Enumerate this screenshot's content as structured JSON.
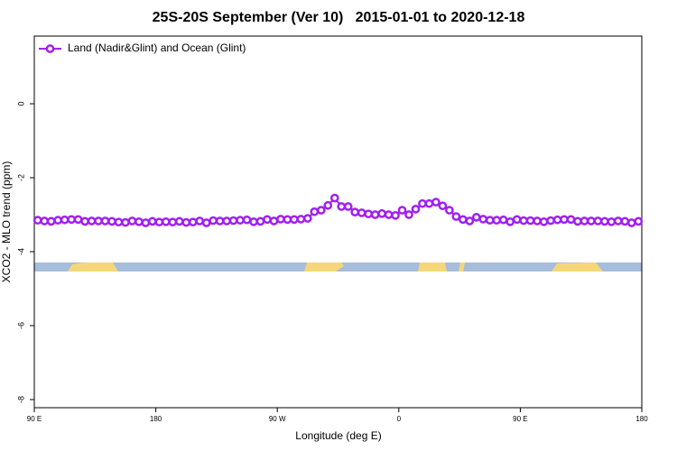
{
  "chart_data": {
    "type": "line",
    "title": "25S-20S September (Ver 10)   2015-01-01 to 2020-12-18",
    "xlabel": "Longitude (deg E)",
    "ylabel": "XCO2 - MLO trend (ppm)",
    "legend": "top-left",
    "x": [
      92.5,
      97.5,
      102.5,
      107.5,
      112.5,
      117.5,
      122.5,
      127.5,
      132.5,
      137.5,
      142.5,
      147.5,
      152.5,
      157.5,
      162.5,
      167.5,
      172.5,
      177.5,
      182.5,
      187.5,
      192.5,
      197.5,
      202.5,
      207.5,
      212.5,
      217.5,
      222.5,
      227.5,
      232.5,
      237.5,
      242.5,
      247.5,
      252.5,
      257.5,
      262.5,
      267.5,
      272.5,
      277.5,
      282.5,
      287.5,
      292.5,
      297.5,
      302.5,
      307.5,
      312.5,
      317.5,
      322.5,
      327.5,
      332.5,
      337.5,
      342.5,
      347.5,
      352.5,
      357.5,
      362.5,
      367.5,
      372.5,
      377.5,
      382.5,
      387.5,
      392.5,
      397.5,
      402.5,
      407.5,
      412.5,
      417.5,
      422.5,
      427.5,
      432.5,
      437.5,
      442.5,
      447.5,
      452.5,
      457.5,
      462.5,
      467.5,
      472.5,
      477.5,
      482.5,
      487.5,
      492.5,
      497.5,
      502.5,
      507.5,
      512.5,
      517.5,
      522.5,
      527.5,
      532.5,
      537.5
    ],
    "series": [
      {
        "name": "Land (Nadir&Glint) and Ocean (Glint)",
        "color": "#a020f0",
        "values": [
          -3.15,
          -3.17,
          -3.18,
          -3.15,
          -3.14,
          -3.13,
          -3.13,
          -3.18,
          -3.17,
          -3.17,
          -3.17,
          -3.18,
          -3.2,
          -3.21,
          -3.17,
          -3.19,
          -3.22,
          -3.18,
          -3.2,
          -3.19,
          -3.2,
          -3.18,
          -3.21,
          -3.2,
          -3.17,
          -3.22,
          -3.16,
          -3.17,
          -3.17,
          -3.16,
          -3.15,
          -3.14,
          -3.19,
          -3.18,
          -3.13,
          -3.17,
          -3.12,
          -3.13,
          -3.13,
          -3.12,
          -3.1,
          -2.92,
          -2.88,
          -2.75,
          -2.55,
          -2.78,
          -2.78,
          -2.93,
          -2.95,
          -2.98,
          -3.0,
          -2.97,
          -3.0,
          -3.02,
          -2.88,
          -3.0,
          -2.85,
          -2.7,
          -2.7,
          -2.66,
          -2.76,
          -2.88,
          -3.05,
          -3.13,
          -3.17,
          -3.07,
          -3.12,
          -3.15,
          -3.15,
          -3.14,
          -3.19,
          -3.13,
          -3.16,
          -3.16,
          -3.17,
          -3.19,
          -3.16,
          -3.14,
          -3.13,
          -3.13,
          -3.18,
          -3.17,
          -3.17,
          -3.17,
          -3.18,
          -3.19,
          -3.17,
          -3.18,
          -3.22,
          -3.18
        ]
      }
    ],
    "xlim": [
      90,
      540
    ],
    "xticks": [
      {
        "value": 90,
        "label": "90 E"
      },
      180,
      {
        "value": 270,
        "label": "90 W"
      },
      {
        "value": 360,
        "label": "0"
      },
      {
        "value": 450,
        "label": "90 E"
      },
      {
        "value": 540,
        "label": "180"
      }
    ],
    "ylim": [
      -8.22,
      1.83
    ],
    "yticks": [
      0,
      -2,
      -4,
      -6,
      -8
    ]
  }
}
